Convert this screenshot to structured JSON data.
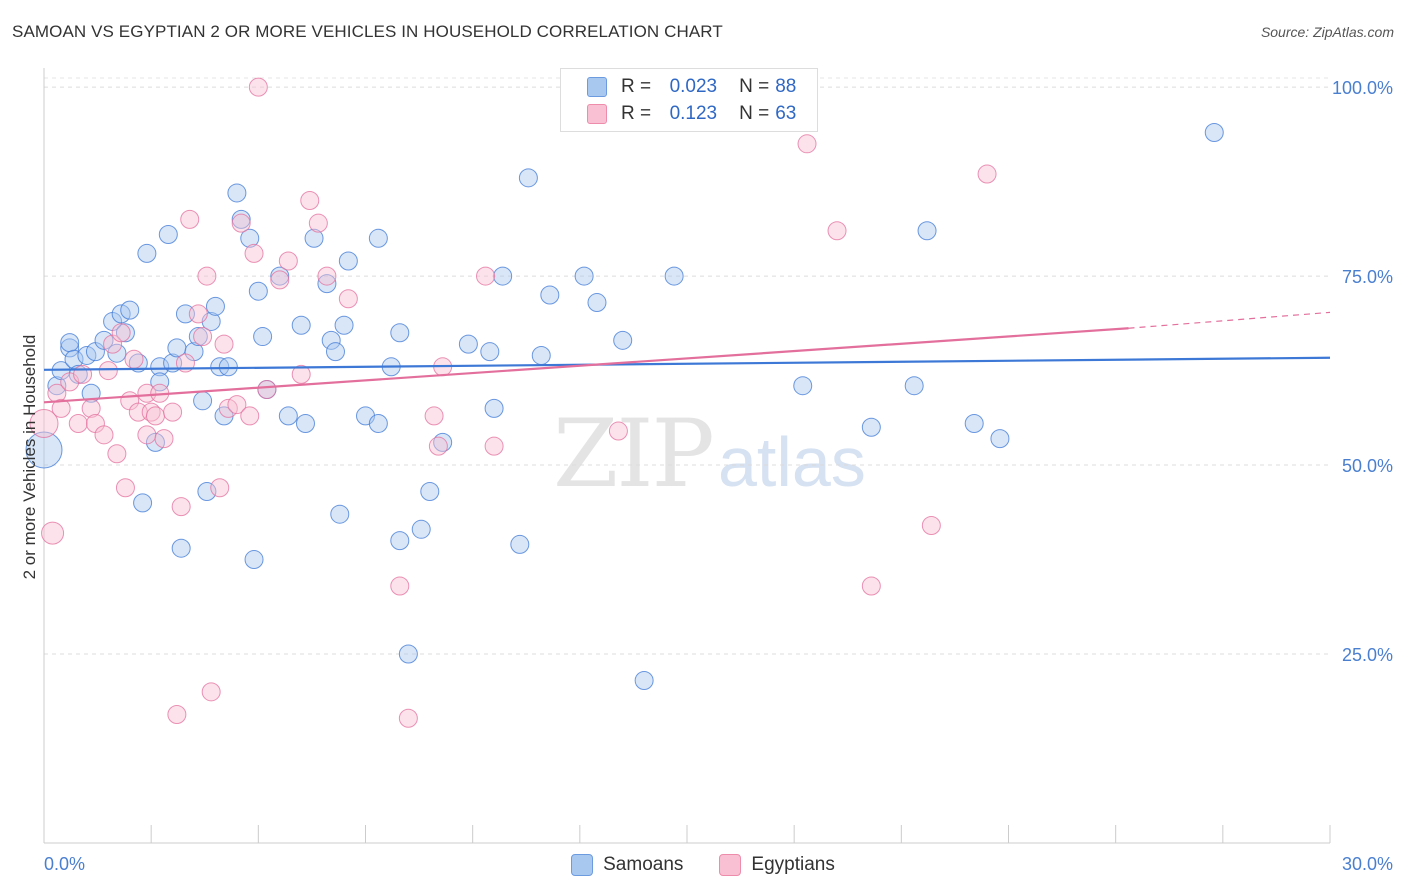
{
  "title": "SAMOAN VS EGYPTIAN 2 OR MORE VEHICLES IN HOUSEHOLD CORRELATION CHART",
  "source": "Source: ZipAtlas.com",
  "watermark": {
    "zip": "ZIP",
    "atlas": "atlas"
  },
  "legend": {
    "rows": [
      {
        "r_label": "R =",
        "r_value": "0.023",
        "n_label": "N =",
        "n_value": "88",
        "color": "#a8c8f0",
        "edge": "#6d9be0"
      },
      {
        "r_label": "R =",
        "r_value": "0.123",
        "n_label": "N =",
        "n_value": "63",
        "color": "#f8c0d2",
        "edge": "#ee8cab"
      }
    ]
  },
  "bottom_legend": [
    {
      "label": "Samoans",
      "color": "#a8c8f0",
      "edge": "#6d9be0"
    },
    {
      "label": "Egyptians",
      "color": "#f8c0d2",
      "edge": "#ee8cab"
    }
  ],
  "chart_data": {
    "type": "scatter",
    "title": "SAMOAN VS EGYPTIAN 2 OR MORE VEHICLES IN HOUSEHOLD CORRELATION CHART",
    "xlabel": "",
    "ylabel": "2 or more Vehicles in Household",
    "xlim": [
      0,
      30
    ],
    "ylim": [
      0,
      102
    ],
    "x_ticks": [
      {
        "value": 0,
        "label": "0.0%"
      },
      {
        "value": 30,
        "label": "30.0%"
      }
    ],
    "y_ticks": [
      {
        "value": 25,
        "label": "25.0%"
      },
      {
        "value": 50,
        "label": "50.0%"
      },
      {
        "value": 75,
        "label": "75.0%"
      },
      {
        "value": 100,
        "label": "100.0%"
      }
    ],
    "grid": "horizontal dashed",
    "colors": {
      "blue": "#3d78d6",
      "pink": "#e36f9c",
      "tick_label": "#4a7fd0"
    },
    "series": [
      {
        "name": "Samoans",
        "color": "#3d78d6",
        "fill": "#a8c8f0",
        "trend": {
          "x0": 0,
          "y0": 62.6,
          "x1": 30,
          "y1": 64.2
        },
        "points": [
          [
            0.0,
            52.0,
            18
          ],
          [
            0.3,
            60.5,
            9
          ],
          [
            0.4,
            62.5,
            9
          ],
          [
            0.6,
            65.5,
            9
          ],
          [
            0.6,
            66.2,
            9
          ],
          [
            0.7,
            64.0,
            9
          ],
          [
            0.8,
            62.0,
            9
          ],
          [
            1.0,
            64.5,
            9
          ],
          [
            1.1,
            59.5,
            9
          ],
          [
            1.2,
            65.0,
            9
          ],
          [
            1.4,
            66.5,
            9
          ],
          [
            1.6,
            69.0,
            9
          ],
          [
            1.7,
            64.8,
            9
          ],
          [
            1.8,
            70.0,
            9
          ],
          [
            1.9,
            67.5,
            9
          ],
          [
            2.0,
            70.5,
            9
          ],
          [
            2.2,
            63.5,
            9
          ],
          [
            2.3,
            45.0,
            9
          ],
          [
            2.4,
            78.0,
            9
          ],
          [
            2.6,
            53.0,
            9
          ],
          [
            2.7,
            63.0,
            9
          ],
          [
            2.7,
            61.0,
            9
          ],
          [
            2.9,
            80.5,
            9
          ],
          [
            3.0,
            63.5,
            9
          ],
          [
            3.1,
            65.5,
            9
          ],
          [
            3.2,
            39.0,
            9
          ],
          [
            3.3,
            70.0,
            9
          ],
          [
            3.5,
            65.0,
            9
          ],
          [
            3.6,
            67.0,
            9
          ],
          [
            3.7,
            58.5,
            9
          ],
          [
            3.8,
            46.5,
            9
          ],
          [
            3.9,
            69.0,
            9
          ],
          [
            4.0,
            71.0,
            9
          ],
          [
            4.1,
            63.0,
            9
          ],
          [
            4.2,
            56.5,
            9
          ],
          [
            4.3,
            63.0,
            9
          ],
          [
            4.5,
            86.0,
            9
          ],
          [
            4.6,
            82.5,
            9
          ],
          [
            4.8,
            80.0,
            9
          ],
          [
            4.9,
            37.5,
            9
          ],
          [
            5.0,
            73.0,
            9
          ],
          [
            5.1,
            67.0,
            9
          ],
          [
            5.2,
            60.0,
            9
          ],
          [
            5.5,
            75.0,
            9
          ],
          [
            5.7,
            56.5,
            9
          ],
          [
            6.0,
            68.5,
            9
          ],
          [
            6.1,
            55.5,
            9
          ],
          [
            6.3,
            80.0,
            9
          ],
          [
            6.6,
            74.0,
            9
          ],
          [
            6.7,
            66.5,
            9
          ],
          [
            6.8,
            65.0,
            9
          ],
          [
            6.9,
            43.5,
            9
          ],
          [
            7.0,
            68.5,
            9
          ],
          [
            7.1,
            77.0,
            9
          ],
          [
            7.5,
            56.5,
            9
          ],
          [
            7.8,
            55.5,
            9
          ],
          [
            7.8,
            80.0,
            9
          ],
          [
            8.1,
            63.0,
            9
          ],
          [
            8.3,
            67.5,
            9
          ],
          [
            8.3,
            40.0,
            9
          ],
          [
            8.5,
            25.0,
            9
          ],
          [
            8.8,
            41.5,
            9
          ],
          [
            9.0,
            46.5,
            9
          ],
          [
            9.3,
            53.0,
            9
          ],
          [
            9.9,
            66.0,
            9
          ],
          [
            10.4,
            65.0,
            9
          ],
          [
            10.5,
            57.5,
            9
          ],
          [
            10.7,
            75.0,
            9
          ],
          [
            11.1,
            39.5,
            9
          ],
          [
            11.3,
            88.0,
            9
          ],
          [
            11.6,
            64.5,
            9
          ],
          [
            11.8,
            72.5,
            9
          ],
          [
            12.6,
            75.0,
            9
          ],
          [
            12.9,
            71.5,
            9
          ],
          [
            13.5,
            66.5,
            9
          ],
          [
            14.0,
            21.5,
            9
          ],
          [
            14.7,
            75.0,
            9
          ],
          [
            17.7,
            60.5,
            9
          ],
          [
            19.3,
            55.0,
            9
          ],
          [
            20.3,
            60.5,
            9
          ],
          [
            20.6,
            81.0,
            9
          ],
          [
            21.7,
            55.5,
            9
          ],
          [
            22.3,
            53.5,
            9
          ],
          [
            27.3,
            94.0,
            9
          ]
        ]
      },
      {
        "name": "Egyptians",
        "color": "#e36f9c",
        "fill": "#f8c0d2",
        "trend": {
          "x0": 0,
          "y0": 58.3,
          "x1": 25.3,
          "y1": 68.1,
          "dash_to_x": 30,
          "dash_to_y": 70.2
        },
        "points": [
          [
            0.0,
            55.5,
            14
          ],
          [
            0.2,
            41.0,
            11
          ],
          [
            0.3,
            59.5,
            9
          ],
          [
            0.4,
            57.5,
            9
          ],
          [
            0.6,
            61.0,
            9
          ],
          [
            0.8,
            55.5,
            9
          ],
          [
            0.9,
            62.0,
            9
          ],
          [
            1.1,
            57.5,
            9
          ],
          [
            1.2,
            55.5,
            9
          ],
          [
            1.4,
            54.0,
            9
          ],
          [
            1.5,
            62.5,
            9
          ],
          [
            1.6,
            66.0,
            9
          ],
          [
            1.7,
            51.5,
            9
          ],
          [
            1.8,
            67.5,
            9
          ],
          [
            1.9,
            47.0,
            9
          ],
          [
            2.0,
            58.5,
            9
          ],
          [
            2.1,
            64.0,
            9
          ],
          [
            2.2,
            57.0,
            9
          ],
          [
            2.4,
            59.5,
            9
          ],
          [
            2.4,
            54.0,
            9
          ],
          [
            2.5,
            57.0,
            9
          ],
          [
            2.6,
            56.5,
            9
          ],
          [
            2.7,
            59.5,
            9
          ],
          [
            2.8,
            53.5,
            9
          ],
          [
            3.0,
            57.0,
            9
          ],
          [
            3.1,
            17.0,
            9
          ],
          [
            3.2,
            44.5,
            9
          ],
          [
            3.3,
            63.5,
            9
          ],
          [
            3.4,
            82.5,
            9
          ],
          [
            3.6,
            70.0,
            9
          ],
          [
            3.7,
            67.0,
            9
          ],
          [
            3.8,
            75.0,
            9
          ],
          [
            3.9,
            20.0,
            9
          ],
          [
            4.1,
            47.0,
            9
          ],
          [
            4.2,
            66.0,
            9
          ],
          [
            4.3,
            57.5,
            9
          ],
          [
            4.5,
            58.0,
            9
          ],
          [
            4.6,
            82.0,
            9
          ],
          [
            4.8,
            56.5,
            9
          ],
          [
            4.9,
            78.0,
            9
          ],
          [
            5.0,
            100.0,
            9
          ],
          [
            5.2,
            60.0,
            9
          ],
          [
            5.5,
            74.5,
            9
          ],
          [
            5.7,
            77.0,
            9
          ],
          [
            6.0,
            62.0,
            9
          ],
          [
            6.2,
            85.0,
            9
          ],
          [
            6.4,
            82.0,
            9
          ],
          [
            6.6,
            75.0,
            9
          ],
          [
            7.1,
            72.0,
            9
          ],
          [
            8.3,
            34.0,
            9
          ],
          [
            8.5,
            16.5,
            9
          ],
          [
            9.1,
            56.5,
            9
          ],
          [
            9.2,
            52.5,
            9
          ],
          [
            9.3,
            63.0,
            9
          ],
          [
            10.3,
            75.0,
            9
          ],
          [
            10.5,
            52.5,
            9
          ],
          [
            13.4,
            54.5,
            9
          ],
          [
            17.8,
            92.5,
            9
          ],
          [
            18.5,
            81.0,
            9
          ],
          [
            19.3,
            34.0,
            9
          ],
          [
            20.7,
            42.0,
            9
          ],
          [
            22.0,
            88.5,
            9
          ]
        ]
      }
    ]
  }
}
